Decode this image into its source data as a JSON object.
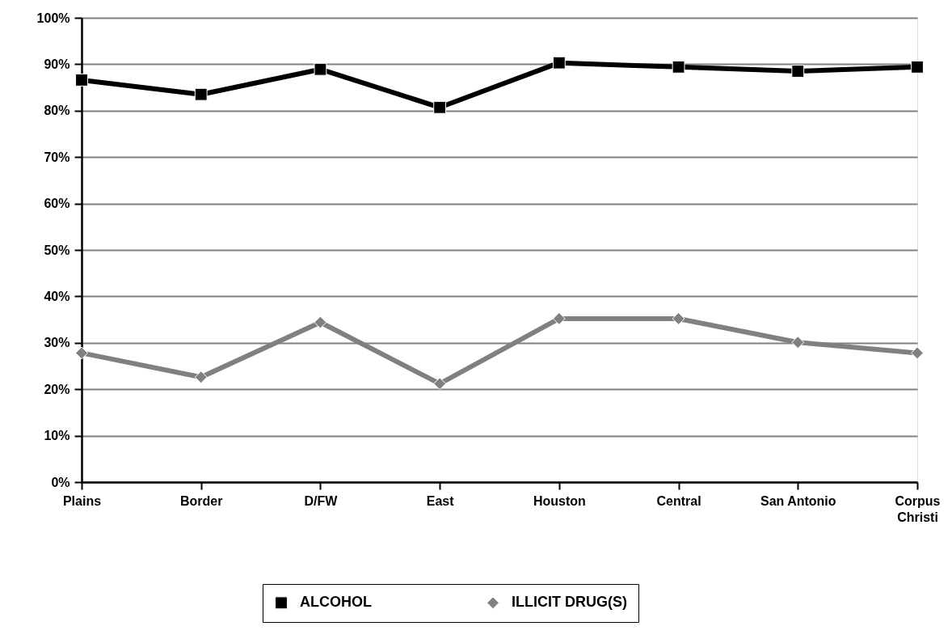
{
  "chart_data": {
    "type": "line",
    "categories": [
      "Plains",
      "Border",
      "D/FW",
      "East",
      "Houston",
      "Central",
      "San Antonio",
      "Corpus Christi"
    ],
    "series": [
      {
        "name": "ALCOHOL",
        "color": "#000000",
        "marker": "square",
        "values": [
          86.6,
          83.5,
          88.9,
          80.7,
          90.3,
          89.4,
          88.5,
          89.4
        ]
      },
      {
        "name": "ILLICIT DRUG(S)",
        "color": "#808080",
        "marker": "diamond",
        "values": [
          27.8,
          22.6,
          34.4,
          21.2,
          35.2,
          35.2,
          30.1,
          27.8
        ]
      }
    ],
    "ylim": [
      0,
      100
    ],
    "yticks": [
      {
        "value": 0,
        "label": "0%"
      },
      {
        "value": 10,
        "label": "10%"
      },
      {
        "value": 20,
        "label": "20%"
      },
      {
        "value": 30,
        "label": "30%"
      },
      {
        "value": 40,
        "label": "40%"
      },
      {
        "value": 50,
        "label": "50%"
      },
      {
        "value": 60,
        "label": "60%"
      },
      {
        "value": 70,
        "label": "70%"
      },
      {
        "value": 80,
        "label": "80%"
      },
      {
        "value": 90,
        "label": "90%"
      },
      {
        "value": 100,
        "label": "100%"
      }
    ],
    "grid": "y",
    "legend": "bottom",
    "line_style": "solid"
  }
}
